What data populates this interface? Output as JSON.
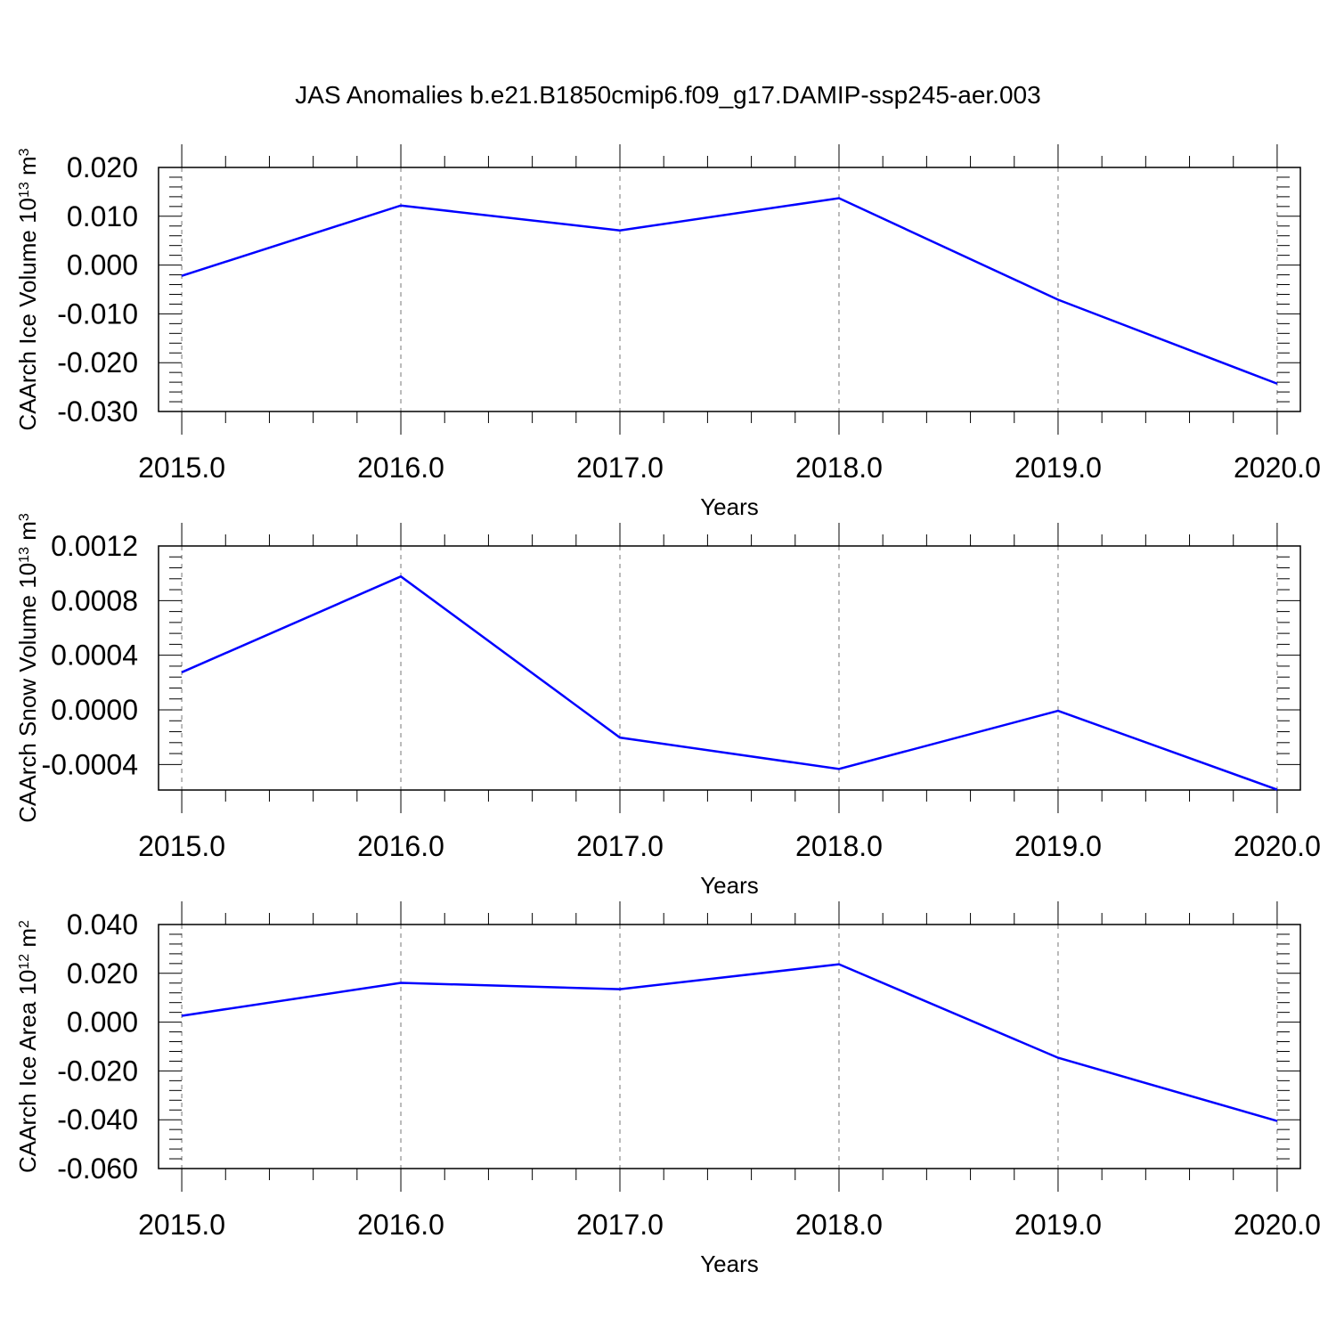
{
  "chart_data": [
    {
      "type": "line",
      "title": "JAS Anomalies b.e21.B1850cmip6.f09_g17.DAMIP-ssp245-aer.003",
      "ylabel": [
        "CAArch Ice Volume 10",
        "13",
        " m",
        "3"
      ],
      "xlabel": "Years",
      "x": [
        2015,
        2016,
        2017,
        2018,
        2019,
        2020
      ],
      "values": [
        -0.0022,
        0.0122,
        0.0071,
        0.0137,
        -0.0071,
        -0.0243
      ],
      "color": "#0000ff",
      "xlim": [
        2014.894,
        2020.106
      ],
      "ylim": [
        -0.03,
        0.02
      ],
      "xticks": [
        {
          "value": 2015,
          "label": "2015.0"
        },
        {
          "value": 2016,
          "label": "2016.0"
        },
        {
          "value": 2017,
          "label": "2017.0"
        },
        {
          "value": 2018,
          "label": "2018.0"
        },
        {
          "value": 2019,
          "label": "2019.0"
        },
        {
          "value": 2020,
          "label": "2020.0"
        }
      ],
      "yticks": [
        {
          "value": -0.03,
          "label": "-0.030"
        },
        {
          "value": -0.02,
          "label": "-0.020"
        },
        {
          "value": -0.01,
          "label": "-0.010"
        },
        {
          "value": 0,
          "label": "0.000"
        },
        {
          "value": 0.01,
          "label": "0.010"
        },
        {
          "value": 0.02,
          "label": "0.020"
        }
      ],
      "grid": true
    },
    {
      "type": "line",
      "ylabel": [
        "CAArch Snow Volume 10",
        "13",
        " m",
        "3"
      ],
      "xlabel": "Years",
      "x": [
        2015,
        2016,
        2017,
        2018,
        2019,
        2020
      ],
      "values": [
        0.000275,
        0.000977,
        -0.000203,
        -0.000433,
        -7e-06,
        -0.000584
      ],
      "color": "#0000ff",
      "xlim": [
        2014.894,
        2020.106
      ],
      "ylim": [
        -0.000587,
        0.0012
      ],
      "xticks": [
        {
          "value": 2015,
          "label": "2015.0"
        },
        {
          "value": 2016,
          "label": "2016.0"
        },
        {
          "value": 2017,
          "label": "2017.0"
        },
        {
          "value": 2018,
          "label": "2018.0"
        },
        {
          "value": 2019,
          "label": "2019.0"
        },
        {
          "value": 2020,
          "label": "2020.0"
        }
      ],
      "yticks": [
        {
          "value": -0.0004,
          "label": "-0.0004"
        },
        {
          "value": 0,
          "label": "0.0000"
        },
        {
          "value": 0.0004,
          "label": "0.0004"
        },
        {
          "value": 0.0008,
          "label": "0.0008"
        },
        {
          "value": 0.0012,
          "label": "0.0012"
        }
      ],
      "grid": true
    },
    {
      "type": "line",
      "ylabel": [
        "CAArch Ice Area 10",
        "12",
        " m",
        "2"
      ],
      "xlabel": "Years",
      "x": [
        2015,
        2016,
        2017,
        2018,
        2019,
        2020
      ],
      "values": [
        0.0026,
        0.0161,
        0.0135,
        0.0237,
        -0.0146,
        -0.0405
      ],
      "color": "#0000ff",
      "xlim": [
        2014.894,
        2020.106
      ],
      "ylim": [
        -0.06,
        0.04
      ],
      "xticks": [
        {
          "value": 2015,
          "label": "2015.0"
        },
        {
          "value": 2016,
          "label": "2016.0"
        },
        {
          "value": 2017,
          "label": "2017.0"
        },
        {
          "value": 2018,
          "label": "2018.0"
        },
        {
          "value": 2019,
          "label": "2019.0"
        },
        {
          "value": 2020,
          "label": "2020.0"
        }
      ],
      "yticks": [
        {
          "value": -0.06,
          "label": "-0.060"
        },
        {
          "value": -0.04,
          "label": "-0.040"
        },
        {
          "value": -0.02,
          "label": "-0.020"
        },
        {
          "value": 0,
          "label": "0.000"
        },
        {
          "value": 0.02,
          "label": "0.020"
        },
        {
          "value": 0.04,
          "label": "0.040"
        }
      ],
      "grid": true
    }
  ]
}
